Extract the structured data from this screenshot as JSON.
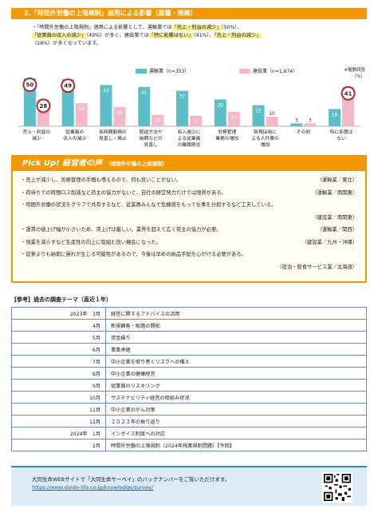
{
  "section_title": "2.「時間外労働の上限規制」適用による影響（業種・規模）",
  "summary": {
    "line1_pre": "・「時間外労働の上限規制」適用による影響として、運輸業では",
    "line1_hl": "「売上・利益の減少」",
    "line1_post": "（50%）、",
    "line2_hl1": "「従業員の収入の減少」",
    "line2_mid": "（49%）が多く、建設業では",
    "line2_hl2": "「特に影響はない」",
    "line2_mid2": "（41%）、",
    "line2_hl3": "「売上・利益の減少」",
    "line3": "（28%）が多くなっています。"
  },
  "legend": {
    "transport": "運輸業",
    "transport_n": "（n=353）",
    "construction": "建設業",
    "construction_n": "（n=1,674）",
    "note1": "※複数回答",
    "note2": "（%）"
  },
  "colors": {
    "transport": "#5bbfc9",
    "construction": "#f6b7c8",
    "accent": "#f39800",
    "circle": "#c0232c"
  },
  "chart_data": {
    "type": "bar",
    "categories": [
      [
        "売上・利益の",
        "減少"
      ],
      [
        "従業員の",
        "収入の減少"
      ],
      [
        "長時間勤務の",
        "見直し・廃止"
      ],
      [
        "配送方法や",
        "納期などの",
        "見直し"
      ],
      [
        "収入減少に",
        "よる従業員",
        "の離職懸念"
      ],
      [
        "労務管理",
        "業務の増加"
      ],
      [
        "新規採用に",
        "よる人件費の",
        "増加"
      ],
      [
        "その他"
      ],
      [
        "特に影響は",
        "ない"
      ]
    ],
    "series": [
      {
        "name": "運輸業",
        "values": [
          50,
          49,
          43,
          41,
          37,
          28,
          22,
          3,
          18
        ]
      },
      {
        "name": "建設業",
        "values": [
          28,
          24,
          20,
          12,
          11,
          15,
          10,
          3,
          41
        ]
      }
    ],
    "ylim": [
      0,
      55
    ],
    "circled": [
      [
        0,
        0
      ],
      [
        0,
        1
      ],
      [
        1,
        0
      ],
      [
        1,
        8
      ]
    ]
  },
  "pickup": {
    "title": "Pick Up! 経営者の声",
    "subtitle": "（時間外労働の上限規制）",
    "voices": [
      {
        "text": "・売上が減少し、労務管理の手間も増えるので、何も良いことがない。",
        "source": "（運輸業／東北）"
      },
      {
        "text": "・荷待ちでの時間ロス削減など荷主の協力がないと、自社の経営努力だけでは限界がある。",
        "source": "（運輸業／南関東）"
      },
      {
        "text": "・時間外労働の状況をグラフで共有するなど、従業員みんなで危機感をもって仕事を分担するなど工夫している。",
        "source": "（建設業／南関東）",
        "wrap": true
      },
      {
        "text": "・運賃の値上げ幅が小さいため、賃上げは厳しい。業界を超えて広く荷主の協力が必要。",
        "source": "（運輸業／関西）"
      },
      {
        "text": "・残業を減らすなど生産性の向上に取組む良い機会になった。",
        "source": "（建設業／九州・沖縄）"
      },
      {
        "text": "・従来よりも納期に遅れが生じる可能性があるので、今後は早めの納品手配を心がける必要がある。",
        "source": "（宿泊・飲食サービス業／北海道）",
        "wrap": true
      }
    ]
  },
  "reference": {
    "heading": "【参考】過去の調査テーマ（直近１年）",
    "rows": [
      {
        "date": "2023年　3月",
        "theme": "経営に関するアドバイスの活用"
      },
      {
        "date": "4月",
        "theme": "新規顧客・販路の開拓"
      },
      {
        "date": "5月",
        "theme": "資金繰り"
      },
      {
        "date": "6月",
        "theme": "事業承継"
      },
      {
        "date": "7月",
        "theme": "中小企業を取り巻くリスクへの備え"
      },
      {
        "date": "8月",
        "theme": "中小企業の健康経営"
      },
      {
        "date": "9月",
        "theme": "従業員のリスキリング"
      },
      {
        "date": "10月",
        "theme": "サステナビリティ経営の取組み状況"
      },
      {
        "date": "11月",
        "theme": "中小企業のがん対策"
      },
      {
        "date": "12月",
        "theme": "２０２３年の振り返り"
      },
      {
        "date": "2024年　1月",
        "theme": "インボイス制度への対応"
      },
      {
        "date": "2月",
        "theme": "時間外労働の上限規制（2024年残業規制問題）【今回】"
      }
    ]
  },
  "footer": {
    "line1": "大同生命WEBサイトで「大同生命サーベイ」のバックナンバーをご覧いただけます。",
    "url": "https://www.daido-life.co.jp/knowledge/survey/"
  }
}
